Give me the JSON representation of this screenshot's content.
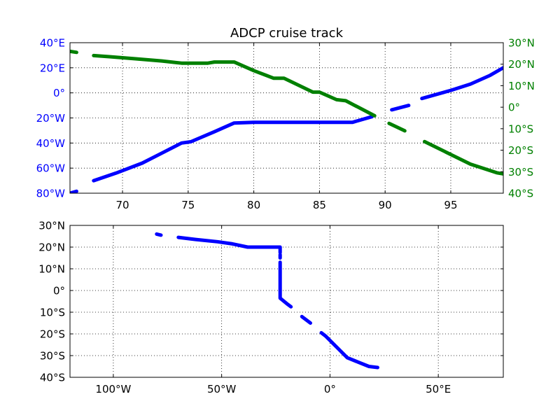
{
  "chart_data": [
    {
      "type": "line",
      "title": "ADCP cruise track",
      "xlabel": "",
      "ylabel": "",
      "xlim": [
        66,
        99
      ],
      "ylim_left": [
        -80,
        40
      ],
      "ylim_right": [
        -40,
        30
      ],
      "grid": true,
      "x_ticks": [
        70,
        75,
        80,
        85,
        90,
        95
      ],
      "x_tick_labels": [
        "70",
        "75",
        "80",
        "85",
        "90",
        "95"
      ],
      "left_axis": {
        "color": "#0000ff",
        "ticks": [
          -80,
          -60,
          -40,
          -20,
          0,
          20,
          40
        ],
        "tick_labels": [
          "80°W",
          "60°W",
          "40°W",
          "20°W",
          "0°",
          "20°E",
          "40°E"
        ]
      },
      "right_axis": {
        "color": "#008000",
        "ticks": [
          -40,
          -30,
          -20,
          -10,
          0,
          10,
          20,
          30
        ],
        "tick_labels": [
          "40°S",
          "30°S",
          "20°S",
          "10°S",
          "0°",
          "10°N",
          "20°N",
          "30°N"
        ]
      },
      "series": [
        {
          "axis": "left",
          "color": "#0000ff",
          "segments": [
            [
              [
                66.0,
                -80.0
              ],
              [
                66.5,
                -78.5
              ]
            ],
            [
              [
                67.8,
                -70.0
              ],
              [
                69.5,
                -64.0
              ],
              [
                71.5,
                -56.0
              ],
              [
                73.0,
                -48.0
              ],
              [
                74.5,
                -40.0
              ],
              [
                75.2,
                -39.0
              ],
              [
                77.0,
                -31.0
              ],
              [
                78.5,
                -24.0
              ],
              [
                80.0,
                -23.5
              ],
              [
                84.0,
                -23.5
              ],
              [
                87.5,
                -23.5
              ],
              [
                89.0,
                -19.0
              ]
            ],
            [
              [
                90.5,
                -13.5
              ],
              [
                91.8,
                -10.0
              ]
            ],
            [
              [
                92.8,
                -4.5
              ],
              [
                95.0,
                2.0
              ],
              [
                96.5,
                7.0
              ],
              [
                98.0,
                14.0
              ],
              [
                99.0,
                20.0
              ]
            ]
          ]
        },
        {
          "axis": "right",
          "color": "#008000",
          "segments": [
            [
              [
                66.0,
                26.0
              ],
              [
                66.5,
                25.5
              ]
            ],
            [
              [
                67.8,
                24.0
              ],
              [
                69.0,
                23.5
              ],
              [
                71.0,
                22.5
              ],
              [
                73.0,
                21.5
              ],
              [
                74.5,
                20.5
              ],
              [
                76.5,
                20.5
              ],
              [
                77.0,
                21.0
              ],
              [
                78.5,
                21.0
              ],
              [
                80.0,
                17.0
              ],
              [
                81.5,
                13.5
              ],
              [
                82.3,
                13.5
              ],
              [
                84.5,
                7.0
              ],
              [
                85.0,
                7.0
              ],
              [
                86.3,
                3.5
              ],
              [
                87.0,
                3.0
              ],
              [
                89.2,
                -4.0
              ]
            ],
            [
              [
                90.3,
                -7.5
              ],
              [
                91.5,
                -11.0
              ]
            ],
            [
              [
                93.0,
                -16.0
              ],
              [
                95.0,
                -22.0
              ],
              [
                96.5,
                -26.5
              ],
              [
                98.5,
                -30.5
              ],
              [
                99.0,
                -31.0
              ]
            ]
          ]
        }
      ]
    },
    {
      "type": "line",
      "title": "",
      "xlabel": "",
      "ylabel": "",
      "xlim": [
        -120,
        80
      ],
      "ylim": [
        -40,
        30
      ],
      "grid": true,
      "x_ticks": [
        -100,
        -50,
        0,
        50
      ],
      "x_tick_labels": [
        "100°W",
        "50°W",
        "0°",
        "50°E"
      ],
      "y_ticks": [
        -40,
        -30,
        -20,
        -10,
        0,
        10,
        20,
        30
      ],
      "y_tick_labels": [
        "40°S",
        "30°S",
        "20°S",
        "10°S",
        "0°",
        "10°N",
        "20°N",
        "30°N"
      ],
      "series": [
        {
          "color": "#0000ff",
          "segments": [
            [
              [
                -80.0,
                26.0
              ],
              [
                -78.0,
                25.5
              ]
            ],
            [
              [
                -70.0,
                24.5
              ],
              [
                -62.0,
                23.5
              ],
              [
                -52.0,
                22.5
              ],
              [
                -45.0,
                21.5
              ],
              [
                -38.0,
                20.0
              ],
              [
                -35.0,
                20.0
              ],
              [
                -24.0,
                20.0
              ],
              [
                -23.0,
                20.0
              ],
              [
                -23.0,
                17.5
              ]
            ],
            [
              [
                -23.0,
                16.5
              ],
              [
                -23.0,
                15.0
              ]
            ],
            [
              [
                -23.0,
                13.0
              ],
              [
                -23.0,
                -3.5
              ],
              [
                -20.0,
                -6.0
              ],
              [
                -18.0,
                -7.5
              ]
            ],
            [
              [
                -13.0,
                -12.0
              ],
              [
                -9.0,
                -15.0
              ]
            ],
            [
              [
                -4.0,
                -19.5
              ],
              [
                -2.0,
                -21.0
              ],
              [
                3.0,
                -26.0
              ],
              [
                8.0,
                -31.0
              ],
              [
                13.0,
                -33.0
              ],
              [
                18.0,
                -35.0
              ],
              [
                22.0,
                -35.5
              ]
            ]
          ]
        }
      ]
    }
  ]
}
